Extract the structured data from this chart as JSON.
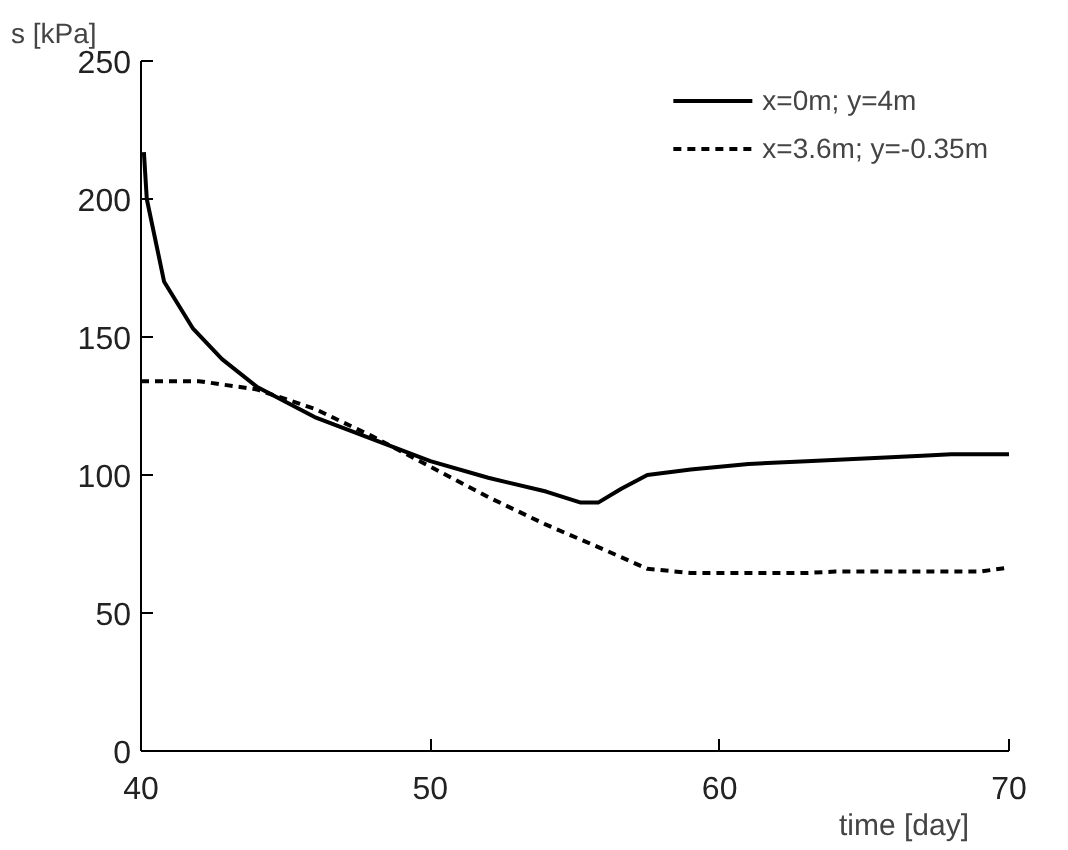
{
  "chart_data": {
    "type": "line",
    "xlabel": "time [day]",
    "ylabel": "s [kPa]",
    "xlim": [
      40,
      70
    ],
    "ylim": [
      0,
      250
    ],
    "xticks": [
      40,
      50,
      60,
      70
    ],
    "yticks": [
      0,
      50,
      100,
      150,
      200,
      250
    ],
    "grid": false,
    "legend": "top right",
    "series": [
      {
        "name": "x=0m; y=4m",
        "color": "#000000",
        "line_style": "solid",
        "x": [
          40.1,
          40.2,
          40.8,
          41.8,
          42.8,
          44,
          46,
          48,
          50,
          52,
          54,
          55.2,
          55.8,
          56.6,
          57.5,
          59,
          61,
          63,
          65,
          67,
          68,
          70
        ],
        "values": [
          217,
          200,
          170,
          153,
          142,
          132,
          121,
          113,
          105,
          99,
          94,
          90,
          90,
          95,
          100,
          102,
          104,
          105,
          106,
          107,
          107.5,
          107.5
        ]
      },
      {
        "name": "x=3.6m; y=-0.35m",
        "color": "#000000",
        "line_style": "dashed",
        "x": [
          40,
          42,
          44,
          46,
          48,
          50,
          52,
          54,
          56,
          57.5,
          59,
          63,
          64,
          69,
          70
        ],
        "values": [
          134,
          134,
          131,
          124,
          114,
          103,
          92,
          82,
          73,
          66,
          64.5,
          64.5,
          65,
          65,
          66.5
        ]
      }
    ]
  }
}
